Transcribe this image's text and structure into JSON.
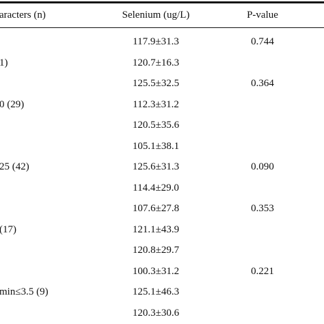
{
  "table": {
    "header": [
      "aracters (n)",
      "Selenium (ug/L)",
      "P-value"
    ],
    "rows": [
      {
        "selenium": "117.9±31.3",
        "p": "0.744"
      },
      {
        "label": "1)",
        "selenium": "120.7±16.3"
      },
      {
        "selenium": "125.5±32.5",
        "p": "0.364"
      },
      {
        "label": "0 (29)",
        "selenium": "112.3±31.2"
      },
      {
        "selenium": "120.5±35.6"
      },
      {
        "selenium": "105.1±38.1"
      },
      {
        "label": "25 (42)",
        "selenium": "125.6±31.3",
        "p": "0.090"
      },
      {
        "selenium": "114.4±29.0"
      },
      {
        "selenium": "107.6±27.8",
        "p": "0.353"
      },
      {
        "label": "(17)",
        "selenium": "121.1±43.9"
      },
      {
        "selenium": "120.8±29.7"
      },
      {
        "selenium": "100.3±31.2",
        "p": "0.221"
      },
      {
        "label": "min≤3.5 (9)",
        "selenium": "125.1±46.3"
      },
      {
        "selenium": "120.3±30.6"
      }
    ]
  }
}
